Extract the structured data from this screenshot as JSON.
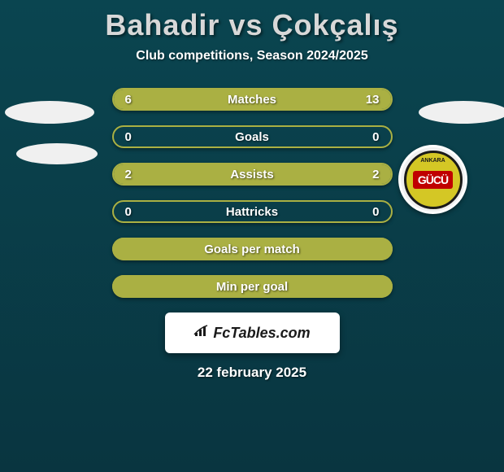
{
  "header": {
    "title": "Bahadir vs Çokçalış",
    "subtitle": "Club competitions, Season 2024/2025"
  },
  "stats": [
    {
      "label": "Matches",
      "left_value": "6",
      "right_value": "13",
      "left_pct": 32,
      "right_pct": 68,
      "has_values": true,
      "bar_color": "#aab043"
    },
    {
      "label": "Goals",
      "left_value": "0",
      "right_value": "0",
      "left_pct": 0,
      "right_pct": 0,
      "has_values": true,
      "bar_color": "#aab043"
    },
    {
      "label": "Assists",
      "left_value": "2",
      "right_value": "2",
      "left_pct": 50,
      "right_pct": 50,
      "has_values": true,
      "bar_color": "#aab043"
    },
    {
      "label": "Hattricks",
      "left_value": "0",
      "right_value": "0",
      "left_pct": 0,
      "right_pct": 0,
      "has_values": true,
      "bar_color": "#aab043"
    },
    {
      "label": "Goals per match",
      "left_value": "",
      "right_value": "",
      "left_pct": 100,
      "right_pct": 0,
      "has_values": false,
      "bar_color": "#aab043"
    },
    {
      "label": "Min per goal",
      "left_value": "",
      "right_value": "",
      "left_pct": 100,
      "right_pct": 0,
      "has_values": false,
      "bar_color": "#aab043"
    }
  ],
  "footer": {
    "brand": "FcTables.com",
    "date": "22 february 2025"
  },
  "club_badge": {
    "top_text": "ANKARA",
    "center_text": "GÜCÜ",
    "main_color": "#d4c725",
    "accent_color": "#c00000"
  },
  "styling": {
    "bg_top": "#0a4550",
    "bg_bottom": "#093540",
    "title_color": "#d8d8d8",
    "text_color": "#ffffff",
    "bar_border_color": "#aab043",
    "bar_fill_color": "#aab043",
    "footer_bg": "#ffffff"
  }
}
